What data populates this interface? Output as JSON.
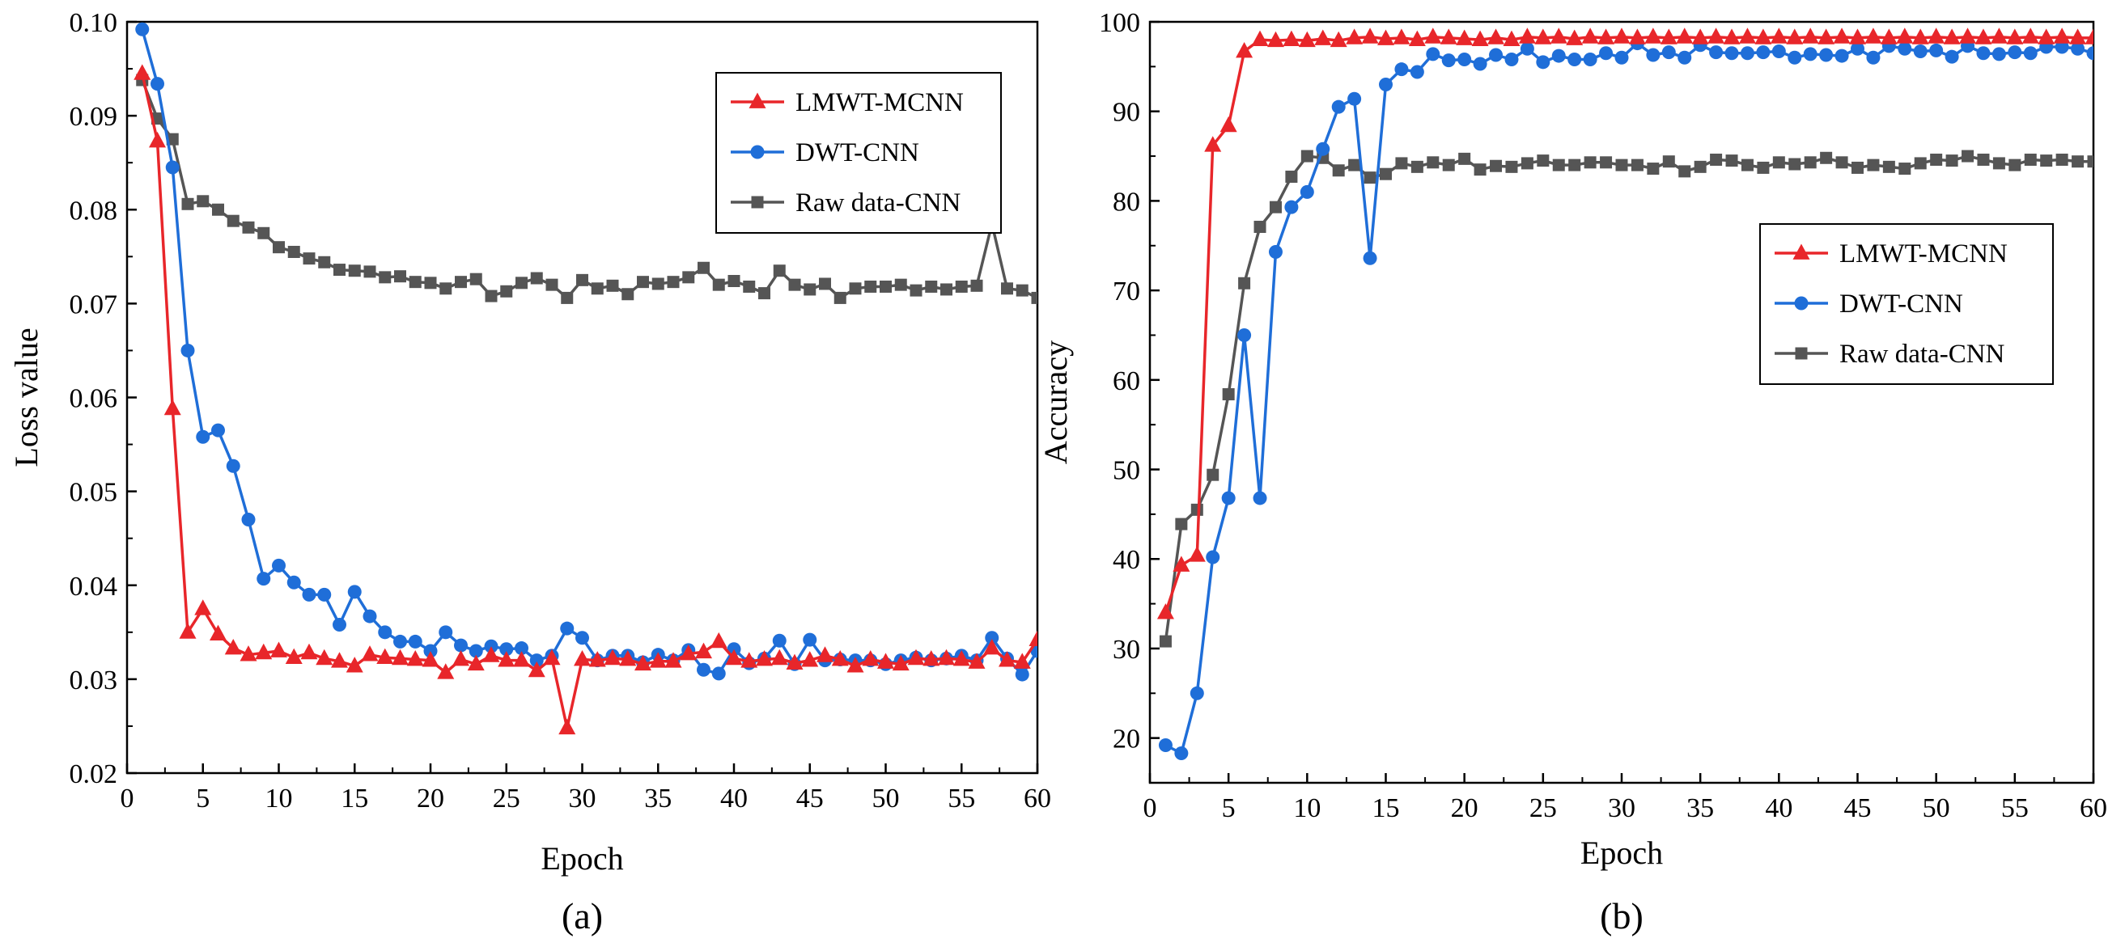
{
  "chart_data": [
    {
      "type": "line",
      "panel_label": "(a)",
      "xlabel": "Epoch",
      "ylabel": "Loss value",
      "xlim": [
        0,
        60
      ],
      "ylim": [
        0.02,
        0.1
      ],
      "xticks": [
        0,
        5,
        10,
        15,
        20,
        25,
        30,
        35,
        40,
        45,
        50,
        55,
        60
      ],
      "xtick_labels": [
        "0",
        "5",
        "10",
        "15",
        "20",
        "25",
        "30",
        "35",
        "40",
        "45",
        "50",
        "55",
        "60"
      ],
      "yticks": [
        0.02,
        0.03,
        0.04,
        0.05,
        0.06,
        0.07,
        0.08,
        0.09,
        0.1
      ],
      "ytick_labels": [
        "0.02",
        "0.03",
        "0.04",
        "0.05",
        "0.06",
        "0.07",
        "0.08",
        "0.09",
        "0.10"
      ],
      "legend_position": "top-right",
      "x": [
        1,
        2,
        3,
        4,
        5,
        6,
        7,
        8,
        9,
        10,
        11,
        12,
        13,
        14,
        15,
        16,
        17,
        18,
        19,
        20,
        21,
        22,
        23,
        24,
        25,
        26,
        27,
        28,
        29,
        30,
        31,
        32,
        33,
        34,
        35,
        36,
        37,
        38,
        39,
        40,
        41,
        42,
        43,
        44,
        45,
        46,
        47,
        48,
        49,
        50,
        51,
        52,
        53,
        54,
        55,
        56,
        57,
        58,
        59,
        60
      ],
      "series": [
        {
          "name": "LMWT-MCNN",
          "color": "#e8262a",
          "marker": "triangle",
          "values": [
            0.0945,
            0.0873,
            0.0588,
            0.035,
            0.0375,
            0.0348,
            0.0333,
            0.0326,
            0.0328,
            0.033,
            0.0323,
            0.0328,
            0.0322,
            0.0319,
            0.0314,
            0.0326,
            0.0323,
            0.0322,
            0.0321,
            0.032,
            0.0307,
            0.0321,
            0.0316,
            0.0325,
            0.032,
            0.032,
            0.0309,
            0.0322,
            0.0248,
            0.0321,
            0.032,
            0.0322,
            0.0321,
            0.0316,
            0.0319,
            0.0319,
            0.0327,
            0.0329,
            0.034,
            0.0322,
            0.0319,
            0.0321,
            0.0322,
            0.0317,
            0.032,
            0.0325,
            0.0321,
            0.0314,
            0.0321,
            0.0318,
            0.0316,
            0.0322,
            0.0321,
            0.0322,
            0.0321,
            0.0318,
            0.0333,
            0.032,
            0.0318,
            0.0342
          ]
        },
        {
          "name": "DWT-CNN",
          "color": "#1f6ed8",
          "marker": "circle",
          "values": [
            0.0992,
            0.0934,
            0.0845,
            0.065,
            0.0558,
            0.0565,
            0.0527,
            0.047,
            0.0407,
            0.0421,
            0.0403,
            0.039,
            0.039,
            0.0358,
            0.0393,
            0.0367,
            0.035,
            0.034,
            0.034,
            0.033,
            0.035,
            0.0336,
            0.033,
            0.0335,
            0.0332,
            0.0333,
            0.032,
            0.0325,
            0.0354,
            0.0344,
            0.032,
            0.0325,
            0.0325,
            0.0318,
            0.0326,
            0.032,
            0.0331,
            0.031,
            0.0306,
            0.0332,
            0.0317,
            0.0322,
            0.0341,
            0.0316,
            0.0342,
            0.032,
            0.0321,
            0.032,
            0.032,
            0.0316,
            0.032,
            0.0323,
            0.032,
            0.0322,
            0.0325,
            0.032,
            0.0344,
            0.0322,
            0.0305,
            0.033
          ]
        },
        {
          "name": "Raw data-CNN",
          "color": "#555555",
          "marker": "square",
          "values": [
            0.0938,
            0.0897,
            0.0875,
            0.0806,
            0.0809,
            0.08,
            0.0788,
            0.0781,
            0.0775,
            0.076,
            0.0755,
            0.0748,
            0.0744,
            0.0736,
            0.0735,
            0.0734,
            0.0728,
            0.0729,
            0.0723,
            0.0722,
            0.0716,
            0.0723,
            0.0726,
            0.0708,
            0.0713,
            0.0722,
            0.0727,
            0.072,
            0.0706,
            0.0725,
            0.0716,
            0.0719,
            0.071,
            0.0723,
            0.0721,
            0.0723,
            0.0728,
            0.0738,
            0.072,
            0.0724,
            0.0718,
            0.0711,
            0.0735,
            0.072,
            0.0715,
            0.0721,
            0.0706,
            0.0716,
            0.0718,
            0.0718,
            0.072,
            0.0714,
            0.0718,
            0.0715,
            0.0718,
            0.0719,
            0.0785,
            0.0716,
            0.0714,
            0.0706
          ]
        }
      ]
    },
    {
      "type": "line",
      "panel_label": "(b)",
      "xlabel": "Epoch",
      "ylabel": "Accuracy",
      "xlim": [
        0,
        60
      ],
      "ylim": [
        15,
        100
      ],
      "xticks": [
        0,
        5,
        10,
        15,
        20,
        25,
        30,
        35,
        40,
        45,
        50,
        55,
        60
      ],
      "xtick_labels": [
        "0",
        "5",
        "10",
        "15",
        "20",
        "25",
        "30",
        "35",
        "40",
        "45",
        "50",
        "55",
        "60"
      ],
      "yticks": [
        20,
        30,
        40,
        50,
        60,
        70,
        80,
        90,
        100
      ],
      "ytick_labels": [
        "20",
        "30",
        "40",
        "50",
        "60",
        "70",
        "80",
        "90",
        "100"
      ],
      "legend_position": "center-right",
      "x": [
        1,
        2,
        3,
        4,
        5,
        6,
        7,
        8,
        9,
        10,
        11,
        12,
        13,
        14,
        15,
        16,
        17,
        18,
        19,
        20,
        21,
        22,
        23,
        24,
        25,
        26,
        27,
        28,
        29,
        30,
        31,
        32,
        33,
        34,
        35,
        36,
        37,
        38,
        39,
        40,
        41,
        42,
        43,
        44,
        45,
        46,
        47,
        48,
        49,
        50,
        51,
        52,
        53,
        54,
        55,
        56,
        57,
        58,
        59,
        60
      ],
      "series": [
        {
          "name": "LMWT-MCNN",
          "color": "#e8262a",
          "marker": "triangle",
          "values": [
            34.0,
            39.3,
            40.4,
            86.2,
            88.4,
            96.7,
            98.0,
            97.9,
            98.0,
            97.9,
            98.1,
            97.9,
            98.2,
            98.3,
            98.1,
            98.2,
            98.0,
            98.3,
            98.2,
            98.1,
            98.0,
            98.2,
            98.0,
            98.3,
            98.2,
            98.3,
            98.1,
            98.3,
            98.2,
            98.3,
            98.2,
            98.3,
            98.2,
            98.3,
            98.2,
            98.3,
            98.2,
            98.3,
            98.2,
            98.3,
            98.2,
            98.3,
            98.2,
            98.3,
            98.2,
            98.3,
            98.2,
            98.3,
            98.2,
            98.3,
            98.2,
            98.3,
            98.2,
            98.3,
            98.2,
            98.3,
            98.2,
            98.3,
            98.2,
            98.2
          ]
        },
        {
          "name": "DWT-CNN",
          "color": "#1f6ed8",
          "marker": "circle",
          "values": [
            19.2,
            18.3,
            25.0,
            40.2,
            46.8,
            65.0,
            46.8,
            74.3,
            79.3,
            81.0,
            85.8,
            90.5,
            91.4,
            73.6,
            93.0,
            94.7,
            94.4,
            96.4,
            95.7,
            95.8,
            95.3,
            96.3,
            95.8,
            97.0,
            95.5,
            96.2,
            95.8,
            95.8,
            96.5,
            96.0,
            97.6,
            96.3,
            96.6,
            96.0,
            97.4,
            96.6,
            96.5,
            96.5,
            96.6,
            96.7,
            96.0,
            96.4,
            96.3,
            96.2,
            97.0,
            96.0,
            97.3,
            97.0,
            96.7,
            96.8,
            96.1,
            97.3,
            96.5,
            96.4,
            96.6,
            96.5,
            97.2,
            97.2,
            97.0,
            96.5
          ]
        },
        {
          "name": "Raw data-CNN",
          "color": "#555555",
          "marker": "square",
          "values": [
            30.8,
            43.9,
            45.5,
            49.4,
            58.4,
            70.8,
            77.1,
            79.3,
            82.7,
            85.0,
            84.8,
            83.4,
            84.0,
            82.6,
            83.0,
            84.2,
            83.8,
            84.3,
            84.0,
            84.7,
            83.5,
            83.9,
            83.8,
            84.2,
            84.5,
            84.0,
            84.0,
            84.3,
            84.3,
            84.0,
            84.0,
            83.6,
            84.4,
            83.3,
            83.8,
            84.6,
            84.5,
            84.0,
            83.7,
            84.3,
            84.1,
            84.3,
            84.8,
            84.3,
            83.7,
            84.0,
            83.8,
            83.6,
            84.2,
            84.6,
            84.5,
            85.0,
            84.6,
            84.2,
            84.0,
            84.6,
            84.5,
            84.6,
            84.4,
            84.4
          ]
        }
      ]
    }
  ]
}
